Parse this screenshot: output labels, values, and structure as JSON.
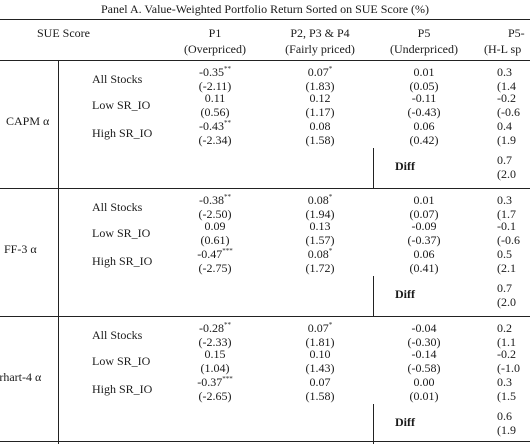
{
  "title": "Panel A. Value-Weighted Portfolio Return Sorted on SUE Score (%)",
  "header": {
    "corner": "SUE Score",
    "columns": [
      {
        "top": "P1",
        "bottom": "(Overpriced)"
      },
      {
        "top": "P2, P3 & P4",
        "bottom": "(Fairly priced)"
      },
      {
        "top": "P5",
        "bottom": "(Underpriced)"
      },
      {
        "top": "P5-",
        "bottom": "(H-L sp"
      }
    ]
  },
  "sections": [
    {
      "model": "CAPM α",
      "rows": [
        {
          "label": "All Stocks",
          "coef": [
            {
              "v": "-0.35",
              "s": "**"
            },
            {
              "v": "0.07",
              "s": "*"
            },
            {
              "v": "0.01",
              "s": ""
            },
            {
              "v": "0.3",
              "s": ""
            }
          ],
          "t": [
            "(-2.11)",
            "(1.83)",
            "(0.05)",
            "(1.4"
          ]
        },
        {
          "label": "Low SR_IO",
          "coef": [
            {
              "v": "0.11",
              "s": ""
            },
            {
              "v": "0.12",
              "s": ""
            },
            {
              "v": "-0.11",
              "s": ""
            },
            {
              "v": "-0.2",
              "s": ""
            }
          ],
          "t": [
            "(0.56)",
            "(1.17)",
            "(-0.43)",
            "(-0.6"
          ]
        },
        {
          "label": "High SR_IO",
          "coef": [
            {
              "v": "-0.43",
              "s": "**"
            },
            {
              "v": "0.08",
              "s": ""
            },
            {
              "v": "0.06",
              "s": ""
            },
            {
              "v": "0.4",
              "s": ""
            }
          ],
          "t": [
            "(-2.34)",
            "(1.58)",
            "(0.42)",
            "(1.9"
          ]
        },
        {
          "label": "Diff",
          "diff": "0.7",
          "diff_t": "(2.0"
        }
      ]
    },
    {
      "model": "FF-3 α",
      "rows": [
        {
          "label": "All Stocks",
          "coef": [
            {
              "v": "-0.38",
              "s": "**"
            },
            {
              "v": "0.08",
              "s": "*"
            },
            {
              "v": "0.01",
              "s": ""
            },
            {
              "v": "0.3",
              "s": ""
            }
          ],
          "t": [
            "(-2.50)",
            "(1.94)",
            "(0.07)",
            "(1.7"
          ]
        },
        {
          "label": "Low SR_IO",
          "coef": [
            {
              "v": "0.09",
              "s": ""
            },
            {
              "v": "0.13",
              "s": ""
            },
            {
              "v": "-0.09",
              "s": ""
            },
            {
              "v": "-0.1",
              "s": ""
            }
          ],
          "t": [
            "(0.61)",
            "(1.57)",
            "(-0.37)",
            "(-0.6"
          ]
        },
        {
          "label": "High SR_IO",
          "coef": [
            {
              "v": "-0.47",
              "s": "***"
            },
            {
              "v": "0.08",
              "s": "*"
            },
            {
              "v": "0.06",
              "s": ""
            },
            {
              "v": "0.5",
              "s": ""
            }
          ],
          "t": [
            "(-2.75)",
            "(1.72)",
            "(0.41)",
            "(2.1"
          ]
        },
        {
          "label": "Diff",
          "diff": "0.7",
          "diff_t": "(2.0"
        }
      ]
    },
    {
      "model": "arhart-4 α",
      "rows": [
        {
          "label": "All Stocks",
          "coef": [
            {
              "v": "-0.28",
              "s": "**"
            },
            {
              "v": "0.07",
              "s": "*"
            },
            {
              "v": "-0.04",
              "s": ""
            },
            {
              "v": "0.2",
              "s": ""
            }
          ],
          "t": [
            "(-2.33)",
            "(1.81)",
            "(-0.30)",
            "(1.1"
          ]
        },
        {
          "label": "Low SR_IO",
          "coef": [
            {
              "v": "0.15",
              "s": ""
            },
            {
              "v": "0.10",
              "s": ""
            },
            {
              "v": "-0.14",
              "s": ""
            },
            {
              "v": "-0.2",
              "s": ""
            }
          ],
          "t": [
            "(1.04)",
            "(1.43)",
            "(-0.58)",
            "(-1.0"
          ]
        },
        {
          "label": "High SR_IO",
          "coef": [
            {
              "v": "-0.37",
              "s": "***"
            },
            {
              "v": "0.07",
              "s": ""
            },
            {
              "v": "0.00",
              "s": ""
            },
            {
              "v": "0.3",
              "s": ""
            }
          ],
          "t": [
            "(-2.65)",
            "(1.58)",
            "(0.01)",
            "(1.5"
          ]
        },
        {
          "label": "Diff",
          "diff": "0.6",
          "diff_t": "(1.9"
        }
      ]
    }
  ]
}
